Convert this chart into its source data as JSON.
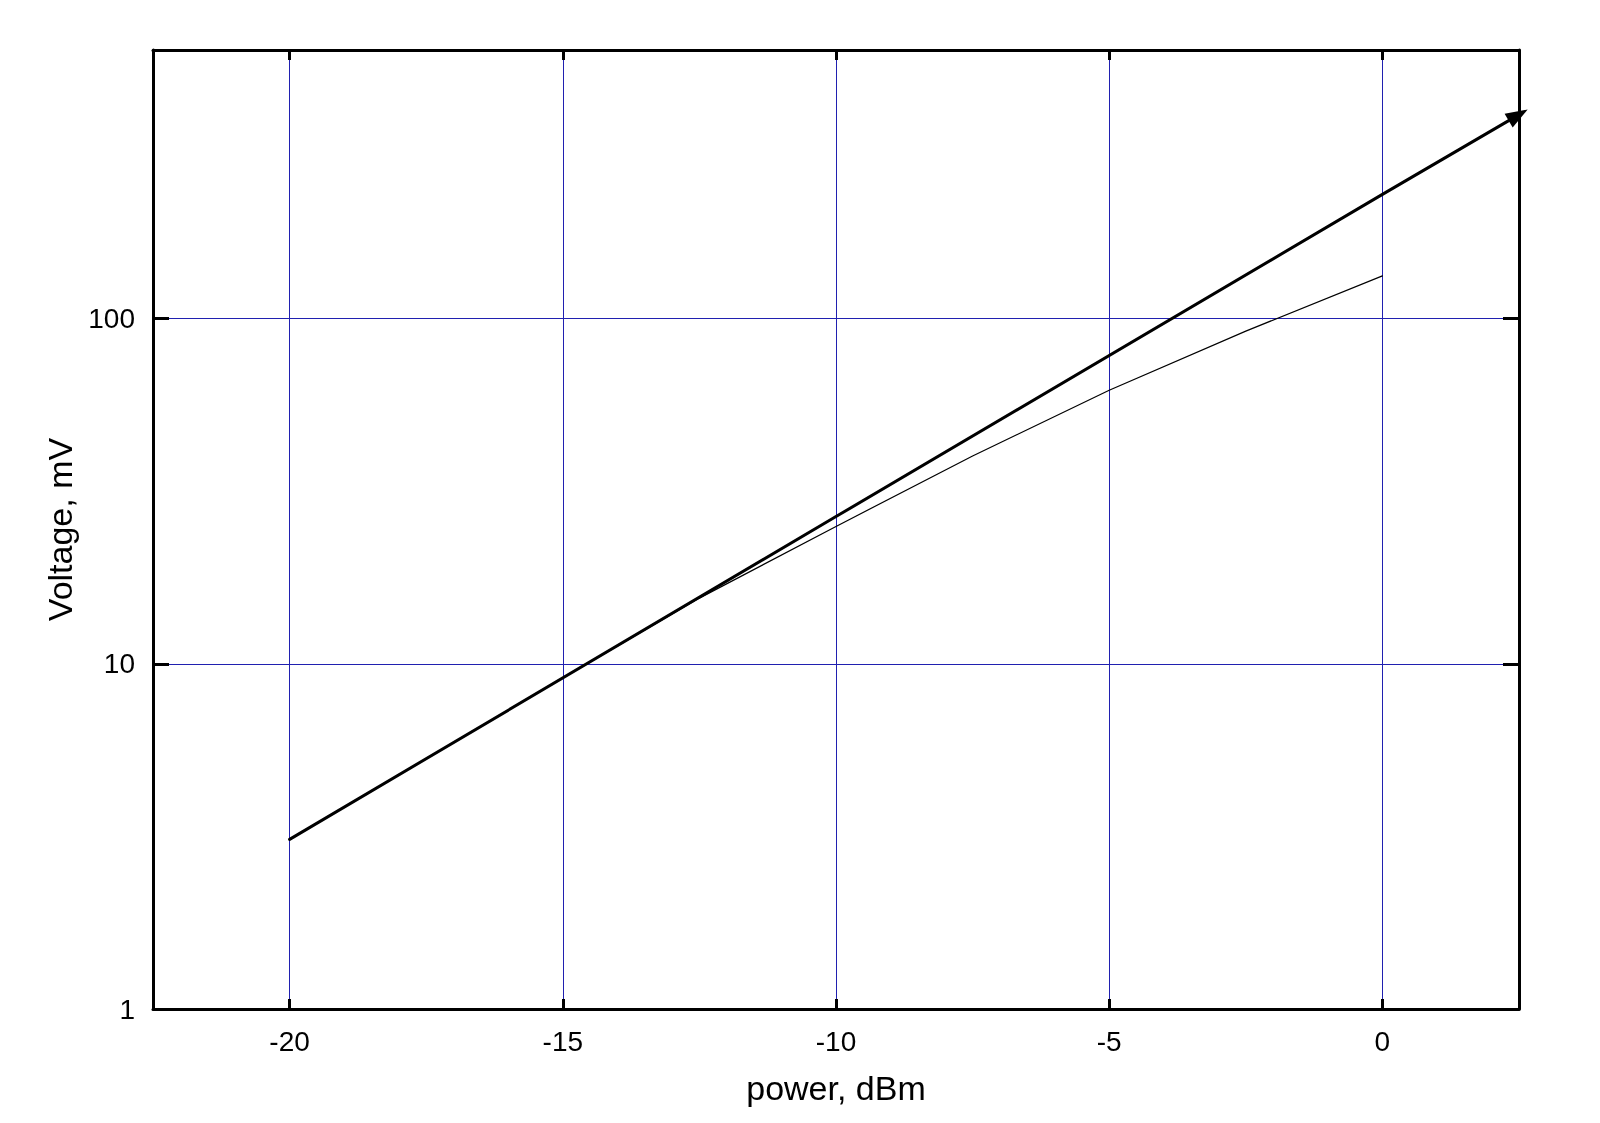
{
  "chart_data": {
    "type": "line",
    "xlabel": "power, dBm",
    "ylabel": "Voltage, mV",
    "log": "y",
    "xlim": [
      -22.5,
      2.5
    ],
    "xticks": [
      -20,
      -15,
      -10,
      -5,
      0
    ],
    "ylim": [
      1,
      600
    ],
    "yticks": [
      1,
      10,
      100
    ],
    "grid": true,
    "line_style": "solid",
    "series": [
      {
        "color": "#000000",
        "x": [
          -20,
          -10,
          0,
          2.5
        ],
        "values": [
          3.1,
          26.7,
          229,
          390
        ]
      },
      {
        "color": "#000000",
        "x": [
          -20,
          -15,
          -12.5,
          -10,
          -7.5,
          -5,
          -2.5,
          0
        ],
        "values": [
          3.1,
          9.1,
          15.5,
          25,
          40,
          62,
          92,
          133
        ]
      }
    ]
  }
}
